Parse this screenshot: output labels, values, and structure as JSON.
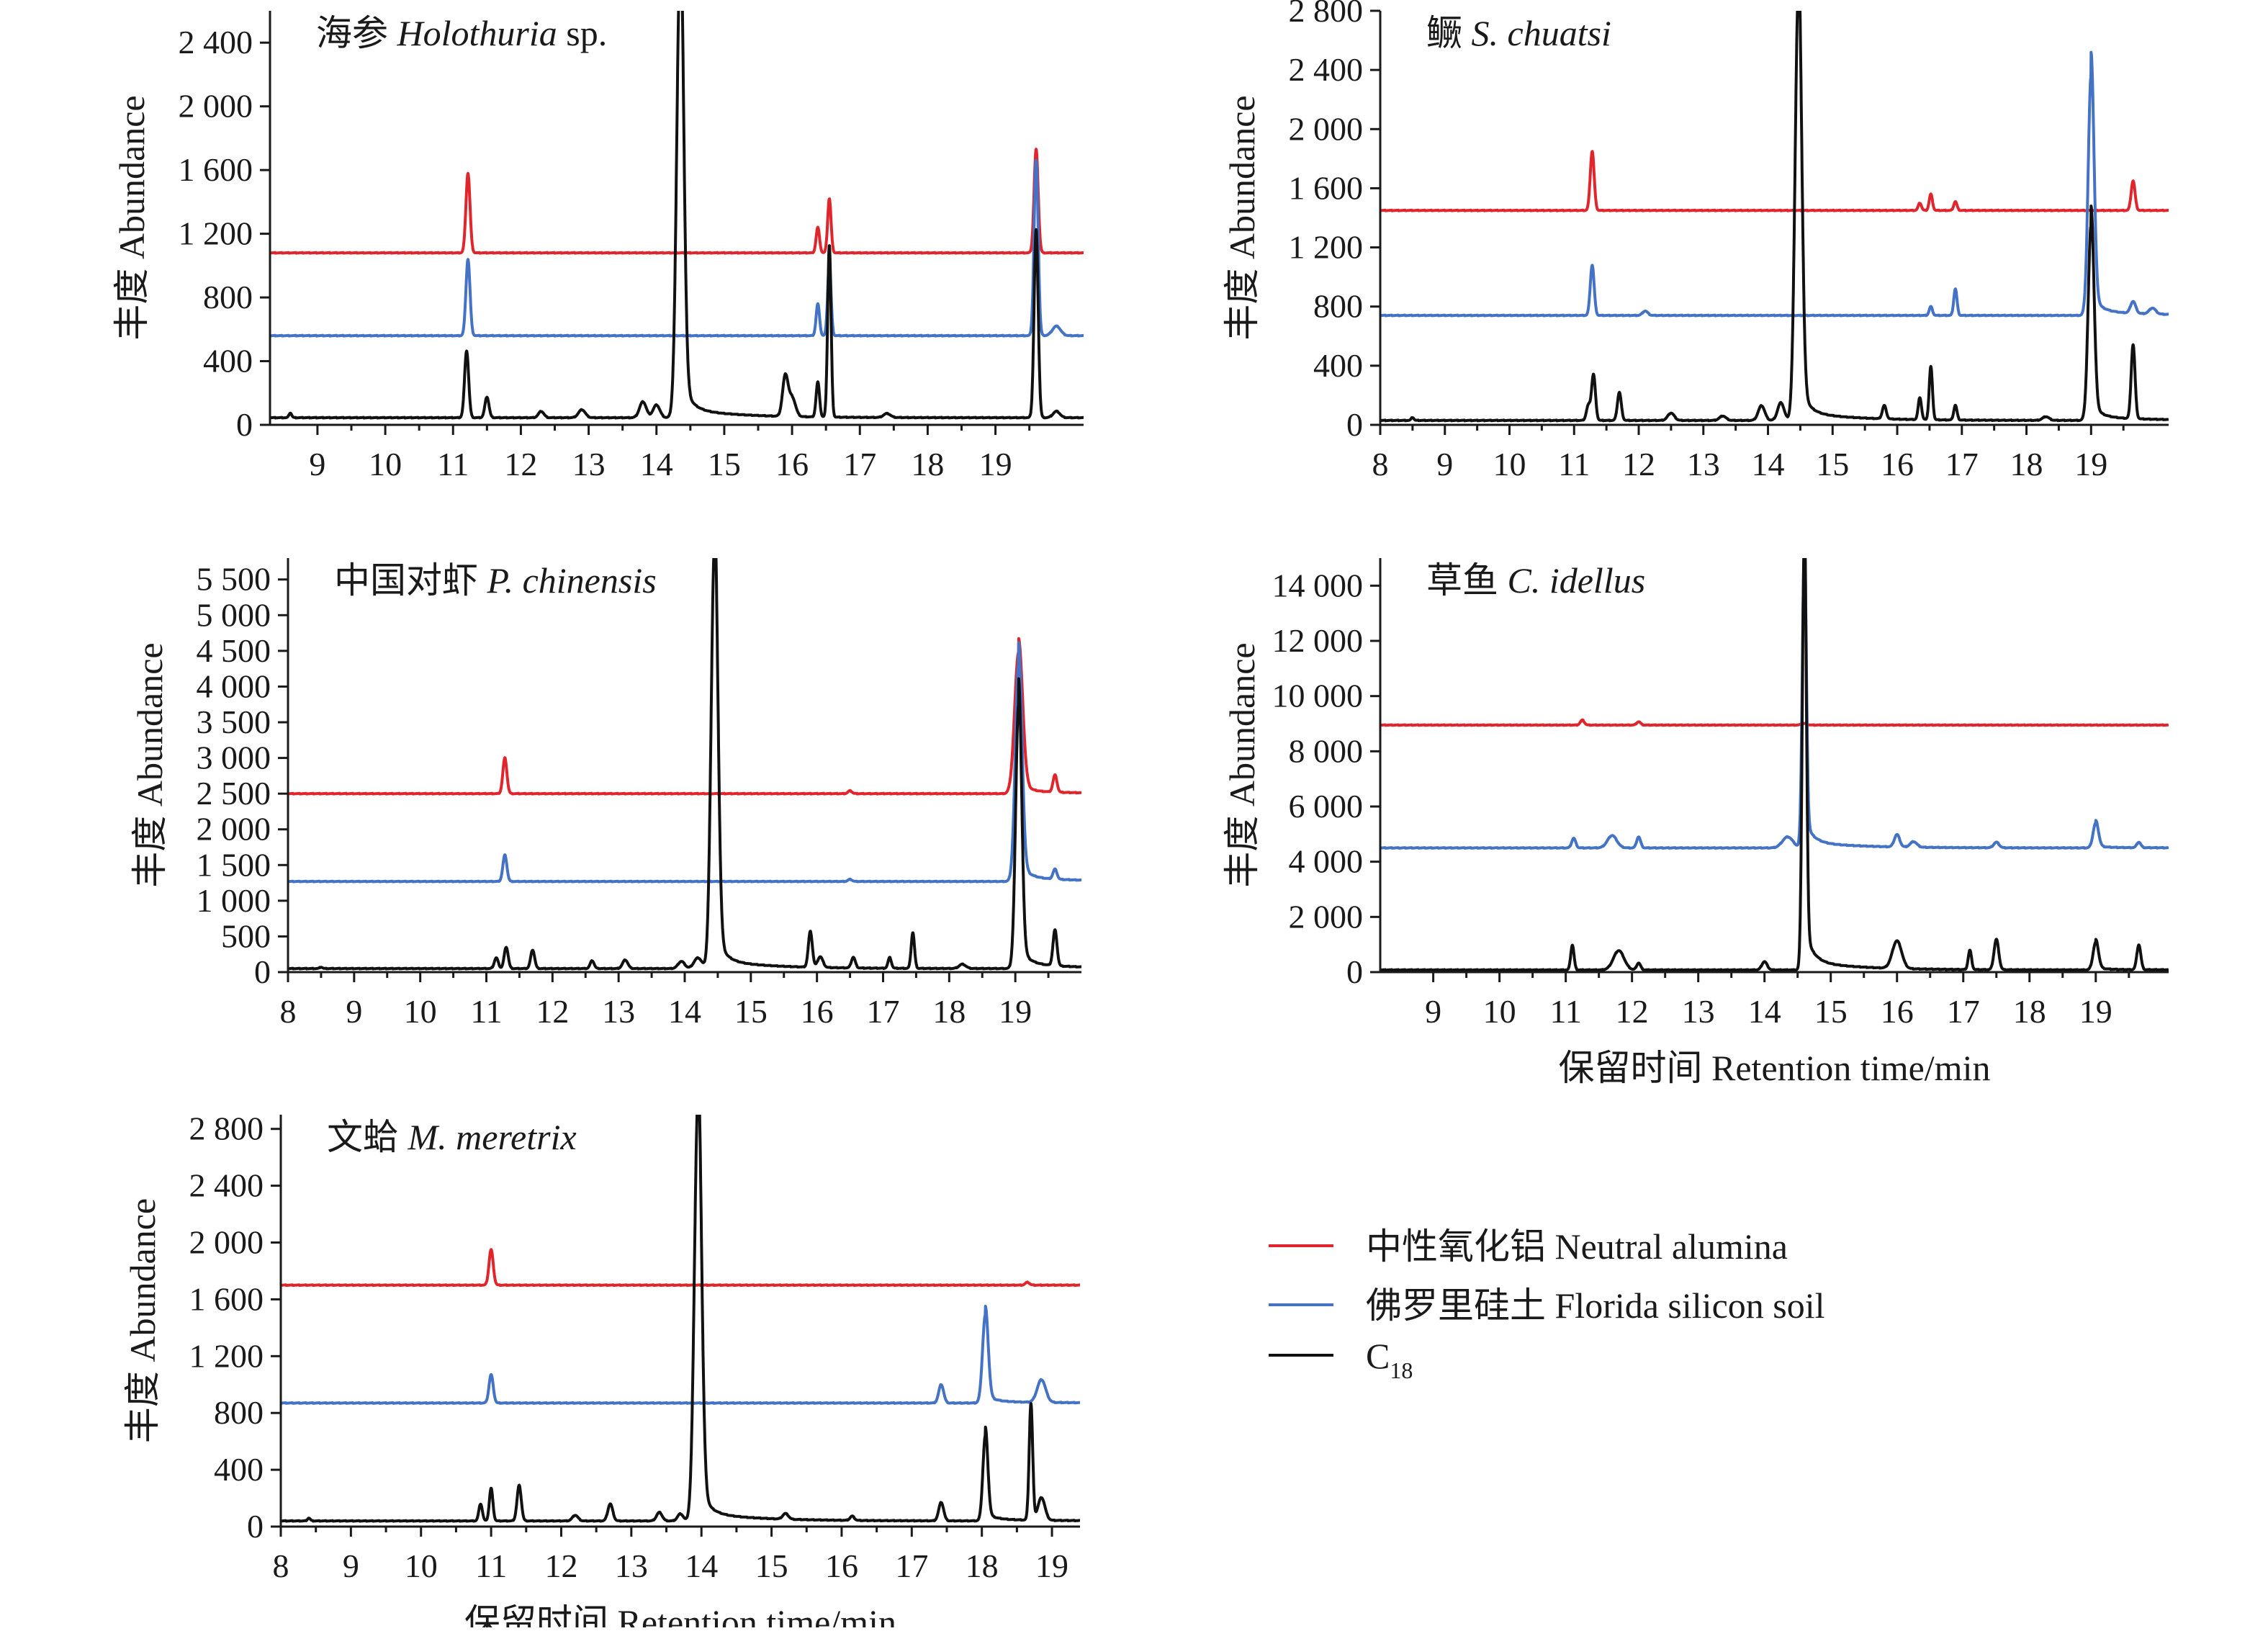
{
  "figure": {
    "legend": [
      {
        "label": "中性氧化铝 Neutral alumina",
        "color": "#e0262c"
      },
      {
        "label": "佛罗里硅土 Florida silicon soil",
        "color": "#4472c4"
      },
      {
        "label": "C",
        "subscript": "18",
        "color": "#111111"
      }
    ],
    "shared_xlabel": "保留时间 Retention time/min",
    "shared_ylabel": "丰度 Abundance"
  },
  "chart_data": [
    {
      "type": "line",
      "title_cn": "海参",
      "title_latin": "Holothuria",
      "title_suffix": " sp.",
      "xlabel": "",
      "ylabel": "丰度 Abundance",
      "xlim": [
        8.3,
        20.3
      ],
      "ylim": [
        0,
        2600
      ],
      "xticks": [
        9,
        10,
        11,
        12,
        13,
        14,
        15,
        16,
        17,
        18,
        19
      ],
      "yticks": [
        0,
        400,
        800,
        1200,
        1600,
        2000,
        2400
      ],
      "ytick_labels": [
        "0",
        "400",
        "800",
        "1 200",
        "1 600",
        "2 000",
        "2 400"
      ],
      "series": [
        {
          "name": "Neutral alumina",
          "color": "#e0262c",
          "baseline": 1080,
          "peaks": [
            [
              11.22,
              500,
              0.03
            ],
            [
              16.38,
              160,
              0.025
            ],
            [
              16.55,
              340,
              0.025
            ],
            [
              19.6,
              650,
              0.03
            ]
          ]
        },
        {
          "name": "Florida silicon soil",
          "color": "#4472c4",
          "baseline": 560,
          "peaks": [
            [
              11.22,
              480,
              0.03
            ],
            [
              16.38,
              200,
              0.025
            ],
            [
              16.55,
              460,
              0.025
            ],
            [
              19.6,
              1100,
              0.03
            ],
            [
              19.9,
              60,
              0.06
            ]
          ]
        },
        {
          "name": "C18",
          "color": "#111111",
          "baseline": 45,
          "peaks": [
            [
              8.6,
              30,
              0.02
            ],
            [
              11.2,
              420,
              0.03
            ],
            [
              11.5,
              130,
              0.03
            ],
            [
              12.3,
              40,
              0.04
            ],
            [
              12.9,
              50,
              0.05
            ],
            [
              13.8,
              100,
              0.05
            ],
            [
              14.0,
              80,
              0.05
            ],
            [
              14.35,
              2900,
              0.05,
              "tail"
            ],
            [
              15.9,
              250,
              0.04
            ],
            [
              16.0,
              120,
              0.05
            ],
            [
              16.38,
              220,
              0.025
            ],
            [
              16.55,
              1080,
              0.025
            ],
            [
              17.4,
              25,
              0.05
            ],
            [
              19.6,
              1180,
              0.03
            ],
            [
              19.9,
              40,
              0.05
            ]
          ]
        }
      ]
    },
    {
      "type": "line",
      "title_cn": "鳜",
      "title_latin": "S. chuatsi",
      "title_suffix": "",
      "xlabel": "",
      "ylabel": "丰度 Abundance",
      "xlim": [
        8.0,
        20.2
      ],
      "ylim": [
        0,
        2800
      ],
      "xticks": [
        8,
        9,
        10,
        11,
        12,
        13,
        14,
        15,
        16,
        17,
        18,
        19
      ],
      "yticks": [
        0,
        400,
        800,
        1200,
        1600,
        2000,
        2400,
        2800
      ],
      "ytick_labels": [
        "0",
        "400",
        "800",
        "1 200",
        "1 600",
        "2 000",
        "2 400",
        "2 800"
      ],
      "series": [
        {
          "name": "Neutral alumina",
          "color": "#e0262c",
          "baseline": 1450,
          "peaks": [
            [
              11.28,
              400,
              0.03
            ],
            [
              16.35,
              50,
              0.025
            ],
            [
              16.52,
              110,
              0.025
            ],
            [
              16.9,
              60,
              0.025
            ],
            [
              19.65,
              200,
              0.03
            ]
          ]
        },
        {
          "name": "Florida silicon soil",
          "color": "#4472c4",
          "baseline": 740,
          "peaks": [
            [
              11.28,
              340,
              0.03
            ],
            [
              12.1,
              30,
              0.04
            ],
            [
              16.52,
              60,
              0.025
            ],
            [
              16.9,
              180,
              0.025
            ],
            [
              19.0,
              1620,
              0.045,
              "tail"
            ],
            [
              19.65,
              80,
              0.04
            ],
            [
              19.95,
              40,
              0.05
            ]
          ]
        },
        {
          "name": "C18",
          "color": "#111111",
          "baseline": 30,
          "peaks": [
            [
              8.5,
              20,
              0.02
            ],
            [
              11.22,
              100,
              0.03
            ],
            [
              11.3,
              310,
              0.03
            ],
            [
              11.7,
              190,
              0.03
            ],
            [
              12.5,
              50,
              0.05
            ],
            [
              13.3,
              30,
              0.05
            ],
            [
              13.9,
              100,
              0.05
            ],
            [
              14.2,
              120,
              0.05
            ],
            [
              14.47,
              2900,
              0.05,
              "tail"
            ],
            [
              15.8,
              90,
              0.03
            ],
            [
              16.35,
              150,
              0.025
            ],
            [
              16.52,
              360,
              0.025
            ],
            [
              16.9,
              100,
              0.025
            ],
            [
              18.3,
              25,
              0.05
            ],
            [
              19.0,
              1320,
              0.045,
              "tail"
            ],
            [
              19.65,
              500,
              0.03
            ]
          ]
        }
      ]
    },
    {
      "type": "line",
      "title_cn": "中国对虾",
      "title_latin": "P. chinensis",
      "title_suffix": "",
      "xlabel": "",
      "ylabel": "丰度 Abundance",
      "xlim": [
        8.0,
        20.0
      ],
      "ylim": [
        0,
        5800
      ],
      "xticks": [
        8,
        9,
        10,
        11,
        12,
        13,
        14,
        15,
        16,
        17,
        18,
        19
      ],
      "yticks": [
        0,
        500,
        1000,
        1500,
        2000,
        2500,
        3000,
        3500,
        4000,
        4500,
        5000,
        5500
      ],
      "ytick_labels": [
        "0",
        "500",
        "1 000",
        "1 500",
        "2 000",
        "2 500",
        "3 000",
        "3 500",
        "4 000",
        "4 500",
        "5 000",
        "5 500"
      ],
      "series": [
        {
          "name": "Neutral alumina",
          "color": "#e0262c",
          "baseline": 2500,
          "peaks": [
            [
              11.28,
              500,
              0.03
            ],
            [
              16.5,
              40,
              0.03
            ],
            [
              19.05,
              1980,
              0.06,
              "tail"
            ],
            [
              19.6,
              240,
              0.03
            ]
          ]
        },
        {
          "name": "Florida silicon soil",
          "color": "#4472c4",
          "baseline": 1270,
          "peaks": [
            [
              11.28,
              370,
              0.03
            ],
            [
              16.5,
              30,
              0.03
            ],
            [
              19.05,
              3050,
              0.05,
              "tail"
            ],
            [
              19.6,
              140,
              0.03
            ]
          ]
        },
        {
          "name": "C18",
          "color": "#111111",
          "baseline": 50,
          "peaks": [
            [
              8.5,
              20,
              0.02
            ],
            [
              11.15,
              150,
              0.03
            ],
            [
              11.3,
              300,
              0.03
            ],
            [
              11.7,
              260,
              0.03
            ],
            [
              12.6,
              110,
              0.03
            ],
            [
              13.1,
              120,
              0.04
            ],
            [
              13.95,
              100,
              0.05
            ],
            [
              14.2,
              150,
              0.06
            ],
            [
              14.45,
              5900,
              0.05,
              "tail"
            ],
            [
              15.9,
              500,
              0.03
            ],
            [
              16.05,
              150,
              0.04
            ],
            [
              16.55,
              150,
              0.03
            ],
            [
              17.1,
              150,
              0.025
            ],
            [
              17.45,
              500,
              0.025
            ],
            [
              18.2,
              60,
              0.05
            ],
            [
              19.05,
              3700,
              0.045,
              "tail"
            ],
            [
              19.6,
              500,
              0.03
            ]
          ]
        }
      ]
    },
    {
      "type": "line",
      "title_cn": "草鱼",
      "title_latin": "C. idellus",
      "title_suffix": "",
      "xlabel": "保留时间 Retention time/min",
      "ylabel": "丰度 Abundance",
      "xlim": [
        8.2,
        20.1
      ],
      "ylim": [
        0,
        15000
      ],
      "xticks": [
        9,
        10,
        11,
        12,
        13,
        14,
        15,
        16,
        17,
        18,
        19
      ],
      "yticks": [
        0,
        2000,
        4000,
        6000,
        8000,
        10000,
        12000,
        14000
      ],
      "ytick_labels": [
        "0",
        "2 000",
        "4 000",
        "6 000",
        "8 000",
        "10 000",
        "12 000",
        "14 000"
      ],
      "series": [
        {
          "name": "Neutral alumina",
          "color": "#e0262c",
          "baseline": 8950,
          "peaks": [
            [
              11.25,
              180,
              0.03
            ],
            [
              12.1,
              120,
              0.03
            ],
            [
              14.6,
              60,
              0.04
            ]
          ]
        },
        {
          "name": "Florida silicon soil",
          "color": "#4472c4",
          "baseline": 4500,
          "peaks": [
            [
              11.12,
              350,
              0.03
            ],
            [
              11.7,
              450,
              0.07
            ],
            [
              12.1,
              400,
              0.03
            ],
            [
              14.35,
              400,
              0.08
            ],
            [
              14.6,
              10500,
              0.03,
              "tail"
            ],
            [
              16.0,
              450,
              0.04
            ],
            [
              16.25,
              200,
              0.05
            ],
            [
              17.5,
              200,
              0.04
            ],
            [
              19.0,
              900,
              0.04,
              "tail"
            ],
            [
              19.65,
              200,
              0.03
            ]
          ]
        },
        {
          "name": "C18",
          "color": "#111111",
          "baseline": 80,
          "peaks": [
            [
              11.1,
              900,
              0.025
            ],
            [
              11.8,
              700,
              0.08
            ],
            [
              12.1,
              250,
              0.03
            ],
            [
              14.0,
              300,
              0.04
            ],
            [
              14.6,
              15500,
              0.03,
              "tail"
            ],
            [
              16.0,
              1000,
              0.07
            ],
            [
              17.1,
              700,
              0.025
            ],
            [
              17.5,
              1100,
              0.035
            ],
            [
              19.0,
              1000,
              0.04,
              "tail"
            ],
            [
              19.65,
              900,
              0.03
            ]
          ]
        }
      ]
    },
    {
      "type": "line",
      "title_cn": "文蛤",
      "title_latin": "M. meretrix",
      "title_suffix": "",
      "xlabel": "保留时间 Retention time/min",
      "ylabel": "丰度 Abundance",
      "xlim": [
        8.0,
        19.4
      ],
      "ylim": [
        0,
        2900
      ],
      "xticks": [
        8,
        9,
        10,
        11,
        12,
        13,
        14,
        15,
        16,
        17,
        18,
        19
      ],
      "yticks": [
        0,
        400,
        800,
        1200,
        1600,
        2000,
        2400,
        2800
      ],
      "ytick_labels": [
        "0",
        "400",
        "800",
        "1 200",
        "1 600",
        "2 000",
        "2 400",
        "2 800"
      ],
      "series": [
        {
          "name": "Neutral alumina",
          "color": "#e0262c",
          "baseline": 1700,
          "peaks": [
            [
              11.0,
              250,
              0.03
            ],
            [
              18.65,
              20,
              0.03
            ]
          ]
        },
        {
          "name": "Florida silicon soil",
          "color": "#4472c4",
          "baseline": 870,
          "peaks": [
            [
              11.0,
              200,
              0.03
            ],
            [
              17.42,
              130,
              0.035
            ],
            [
              18.05,
              620,
              0.04,
              "tail"
            ],
            [
              18.85,
              160,
              0.06
            ]
          ]
        },
        {
          "name": "C18",
          "color": "#111111",
          "baseline": 40,
          "peaks": [
            [
              8.4,
              20,
              0.02
            ],
            [
              10.85,
              120,
              0.025
            ],
            [
              11.0,
              230,
              0.025
            ],
            [
              11.4,
              250,
              0.03
            ],
            [
              12.2,
              40,
              0.04
            ],
            [
              12.7,
              120,
              0.035
            ],
            [
              13.4,
              60,
              0.04
            ],
            [
              13.7,
              50,
              0.04
            ],
            [
              13.95,
              2950,
              0.05,
              "tail"
            ],
            [
              15.2,
              40,
              0.04
            ],
            [
              16.15,
              30,
              0.03
            ],
            [
              17.42,
              130,
              0.035
            ],
            [
              18.05,
              600,
              0.035,
              "tail"
            ],
            [
              18.7,
              820,
              0.025
            ],
            [
              18.85,
              160,
              0.05
            ]
          ]
        }
      ]
    }
  ]
}
